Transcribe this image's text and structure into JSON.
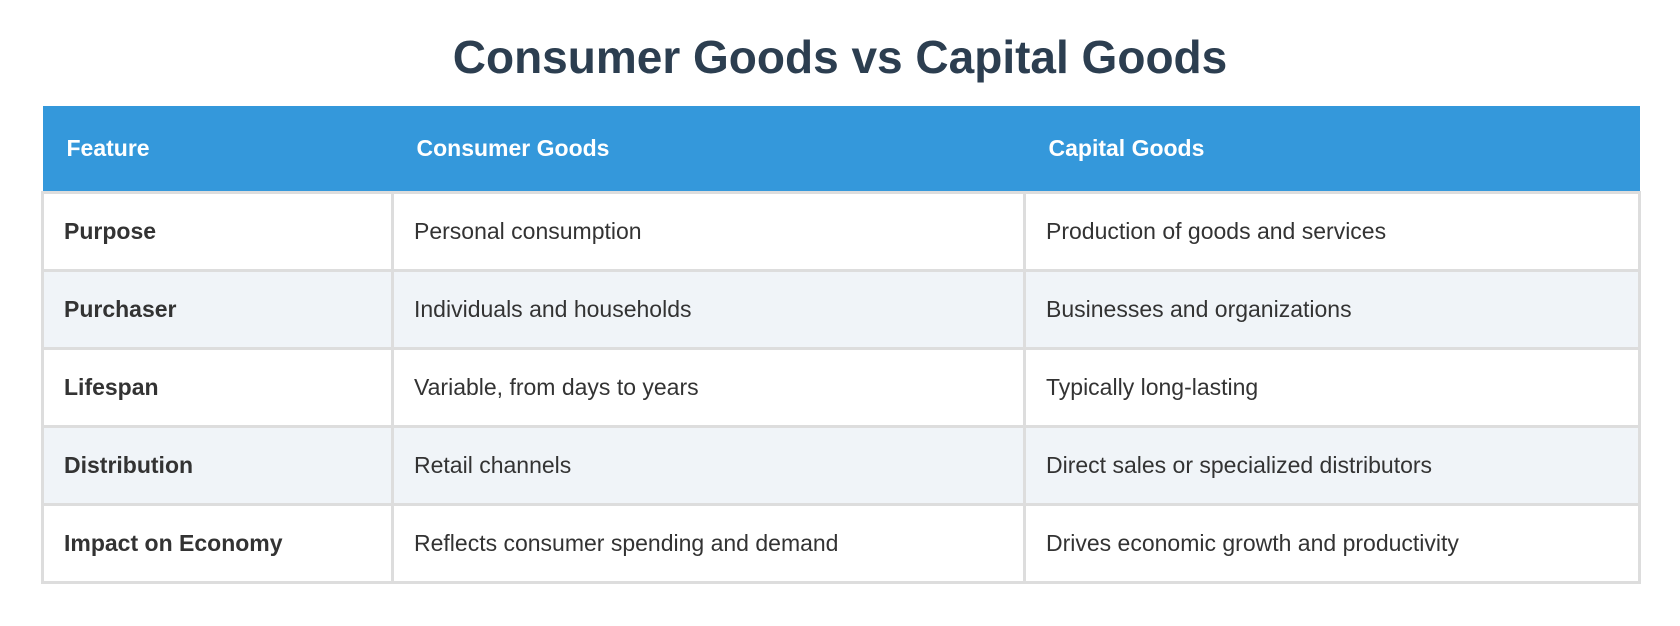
{
  "title": "Consumer Goods vs Capital Goods",
  "table": {
    "header": [
      "Feature",
      "Consumer Goods",
      "Capital Goods"
    ],
    "rows": [
      [
        "Purpose",
        "Personal consumption",
        "Production of goods and services"
      ],
      [
        "Purchaser",
        "Individuals and households",
        "Businesses and organizations"
      ],
      [
        "Lifespan",
        "Variable, from days to years",
        "Typically long-lasting"
      ],
      [
        "Distribution",
        "Retail channels",
        "Direct sales or specialized distributors"
      ],
      [
        "Impact on Economy",
        "Reflects consumer spending and demand",
        "Drives economic growth and productivity"
      ]
    ]
  }
}
